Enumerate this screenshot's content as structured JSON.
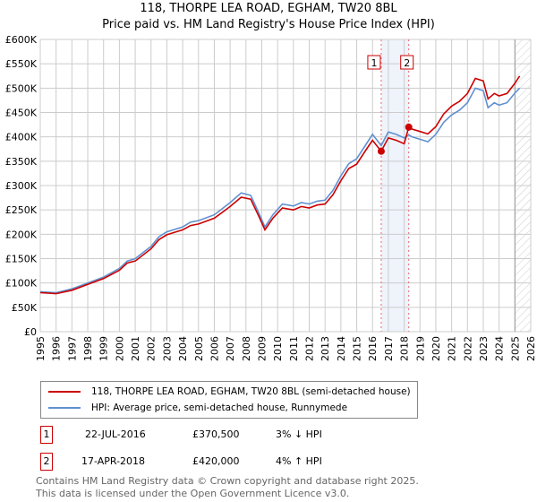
{
  "chart_data": {
    "type": "line",
    "title": "118, THORPE LEA ROAD, EGHAM, TW20 8BL",
    "subtitle": "Price paid vs. HM Land Registry's House Price Index (HPI)",
    "xlim": [
      1995,
      2026
    ],
    "ylim": [
      0,
      600000
    ],
    "x_ticks": [
      "1995",
      "1996",
      "1997",
      "1998",
      "1999",
      "2000",
      "2001",
      "2002",
      "2003",
      "2004",
      "2005",
      "2006",
      "2007",
      "2008",
      "2009",
      "2010",
      "2011",
      "2012",
      "2013",
      "2014",
      "2015",
      "2016",
      "2017",
      "2018",
      "2019",
      "2020",
      "2021",
      "2022",
      "2023",
      "2024",
      "2025",
      "2026"
    ],
    "y_ticks": [
      {
        "v": 0,
        "l": "£0"
      },
      {
        "v": 50000,
        "l": "£50K"
      },
      {
        "v": 100000,
        "l": "£100K"
      },
      {
        "v": 150000,
        "l": "£150K"
      },
      {
        "v": 200000,
        "l": "£200K"
      },
      {
        "v": 250000,
        "l": "£250K"
      },
      {
        "v": 300000,
        "l": "£300K"
      },
      {
        "v": 350000,
        "l": "£350K"
      },
      {
        "v": 400000,
        "l": "£400K"
      },
      {
        "v": 450000,
        "l": "£450K"
      },
      {
        "v": 500000,
        "l": "£500K"
      },
      {
        "v": 550000,
        "l": "£550K"
      },
      {
        "v": 600000,
        "l": "£600K"
      }
    ],
    "grid": true,
    "series": [
      {
        "name": "118, THORPE LEA ROAD, EGHAM, TW20 8BL (semi-detached house)",
        "color": "#cc0000",
        "x": [
          1995,
          1996,
          1997,
          1998,
          1999,
          2000,
          2000.5,
          2001,
          2002,
          2002.5,
          2003,
          2004,
          2004.5,
          2005,
          2006,
          2007,
          2007.7,
          2008.3,
          2008.8,
          2009.2,
          2009.7,
          2010.3,
          2011,
          2011.5,
          2012,
          2012.5,
          2013,
          2013.5,
          2014,
          2014.5,
          2015,
          2015.5,
          2016,
          2016.55,
          2017,
          2017.5,
          2018,
          2018.29,
          2018.5,
          2019,
          2019.5,
          2020,
          2020.5,
          2021,
          2021.5,
          2022,
          2022.5,
          2023,
          2023.3,
          2023.7,
          2024,
          2024.5,
          2025,
          2025.3
        ],
        "y": [
          80000,
          78000,
          85000,
          97000,
          109000,
          126000,
          141000,
          145000,
          170000,
          189000,
          199000,
          209000,
          218000,
          221000,
          233000,
          257000,
          276000,
          272000,
          238000,
          209000,
          233000,
          254000,
          250000,
          257000,
          254000,
          260000,
          262000,
          281000,
          310000,
          335000,
          344000,
          369000,
          393000,
          370500,
          398000,
          393000,
          386000,
          420000,
          416000,
          411000,
          406000,
          421000,
          447000,
          463000,
          473000,
          489000,
          520000,
          515000,
          478000,
          489000,
          484000,
          489000,
          510000,
          525000
        ]
      },
      {
        "name": "HPI: Average price, semi-detached house, Runnymede",
        "color": "#6090d0",
        "x": [
          1995,
          1996,
          1997,
          1998,
          1999,
          2000,
          2000.5,
          2001,
          2002,
          2002.5,
          2003,
          2004,
          2004.5,
          2005,
          2006,
          2007,
          2007.7,
          2008.3,
          2008.8,
          2009.2,
          2009.7,
          2010.3,
          2011,
          2011.5,
          2012,
          2012.5,
          2013,
          2013.5,
          2014,
          2014.5,
          2015,
          2015.5,
          2016,
          2016.55,
          2017,
          2017.5,
          2018,
          2018.29,
          2018.5,
          2019,
          2019.5,
          2020,
          2020.5,
          2021,
          2021.5,
          2022,
          2022.5,
          2023,
          2023.3,
          2023.7,
          2024,
          2024.5,
          2025,
          2025.3
        ],
        "y": [
          82000,
          80000,
          88000,
          100000,
          112000,
          130000,
          145000,
          150000,
          175000,
          195000,
          205000,
          215000,
          225000,
          228000,
          240000,
          265000,
          285000,
          280000,
          245000,
          215000,
          240000,
          262000,
          258000,
          265000,
          262000,
          268000,
          270000,
          290000,
          320000,
          345000,
          355000,
          380000,
          405000,
          382000,
          410000,
          405000,
          398000,
          404000,
          400000,
          395000,
          390000,
          405000,
          430000,
          445000,
          455000,
          470000,
          500000,
          495000,
          460000,
          470000,
          465000,
          470000,
          490000,
          500000
        ]
      }
    ],
    "sales": [
      {
        "label": "1",
        "x": 2016.55,
        "y": 370500
      },
      {
        "label": "2",
        "x": 2018.29,
        "y": 420000
      }
    ],
    "hatch_from": 2025.0
  },
  "legend": {
    "items": [
      "118, THORPE LEA ROAD, EGHAM, TW20 8BL (semi-detached house)",
      "HPI: Average price, semi-detached house, Runnymede"
    ]
  },
  "transactions": [
    {
      "num": "1",
      "date": "22-JUL-2016",
      "price": "£370,500",
      "hpi": "3% ↓ HPI"
    },
    {
      "num": "2",
      "date": "17-APR-2018",
      "price": "£420,000",
      "hpi": "4% ↑ HPI"
    }
  ],
  "footer": {
    "line1": "Contains HM Land Registry data © Crown copyright and database right 2025.",
    "line2": "This data is licensed under the Open Government Licence v3.0."
  }
}
